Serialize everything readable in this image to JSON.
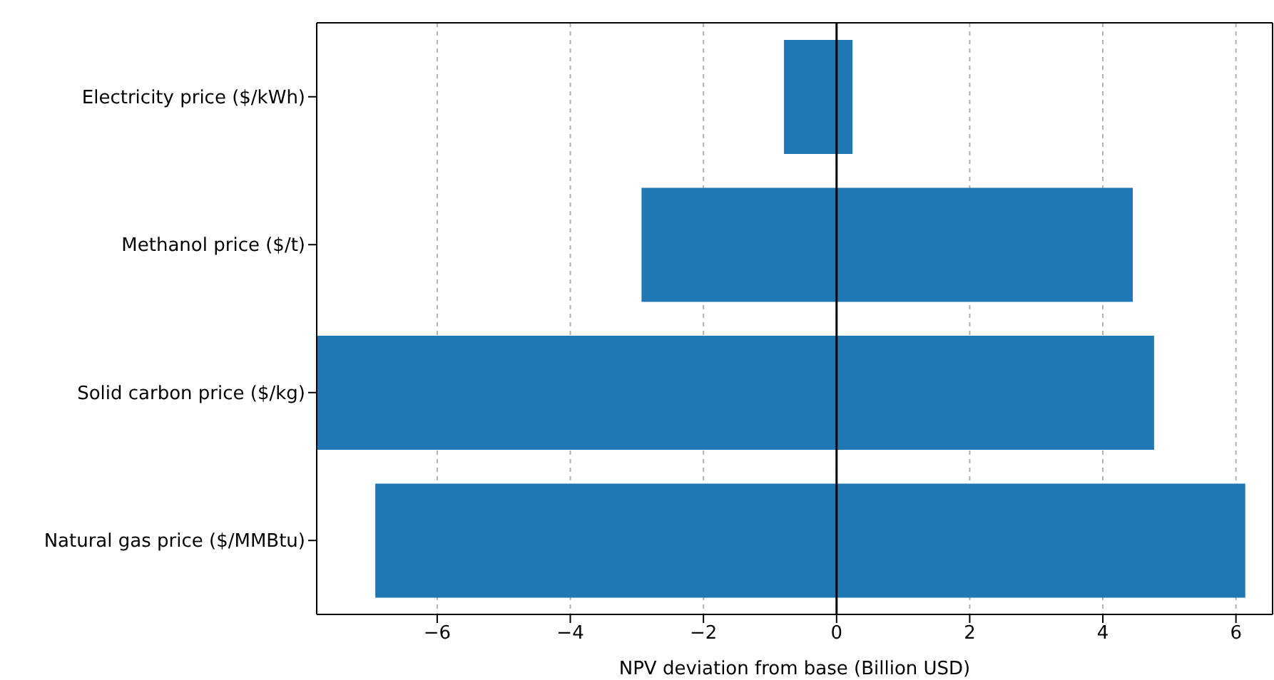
{
  "chart_data": {
    "type": "bar",
    "orientation": "horizontal",
    "xlabel": "NPV deviation from base (Billion USD)",
    "categories": [
      "Electricity price ($/kWh)",
      "Methanol price ($/t)",
      "Solid carbon price ($/kg)",
      "Natural gas price ($/MMBtu)"
    ],
    "base": [
      -0.79,
      -2.93,
      -7.8,
      -6.93
    ],
    "values": [
      1.03,
      7.38,
      12.57,
      13.07
    ],
    "color": "#1f77b4",
    "xlim": [
      -7.81,
      6.55
    ],
    "xticks": [
      {
        "value": -6,
        "label": "−6"
      },
      {
        "value": -4,
        "label": "−4"
      },
      {
        "value": -2,
        "label": "−2"
      },
      0,
      2,
      4,
      6
    ],
    "grid": "x",
    "ref_lines": [
      {
        "axis": "x",
        "value": 0,
        "label": null,
        "color": "#000000"
      }
    ]
  }
}
